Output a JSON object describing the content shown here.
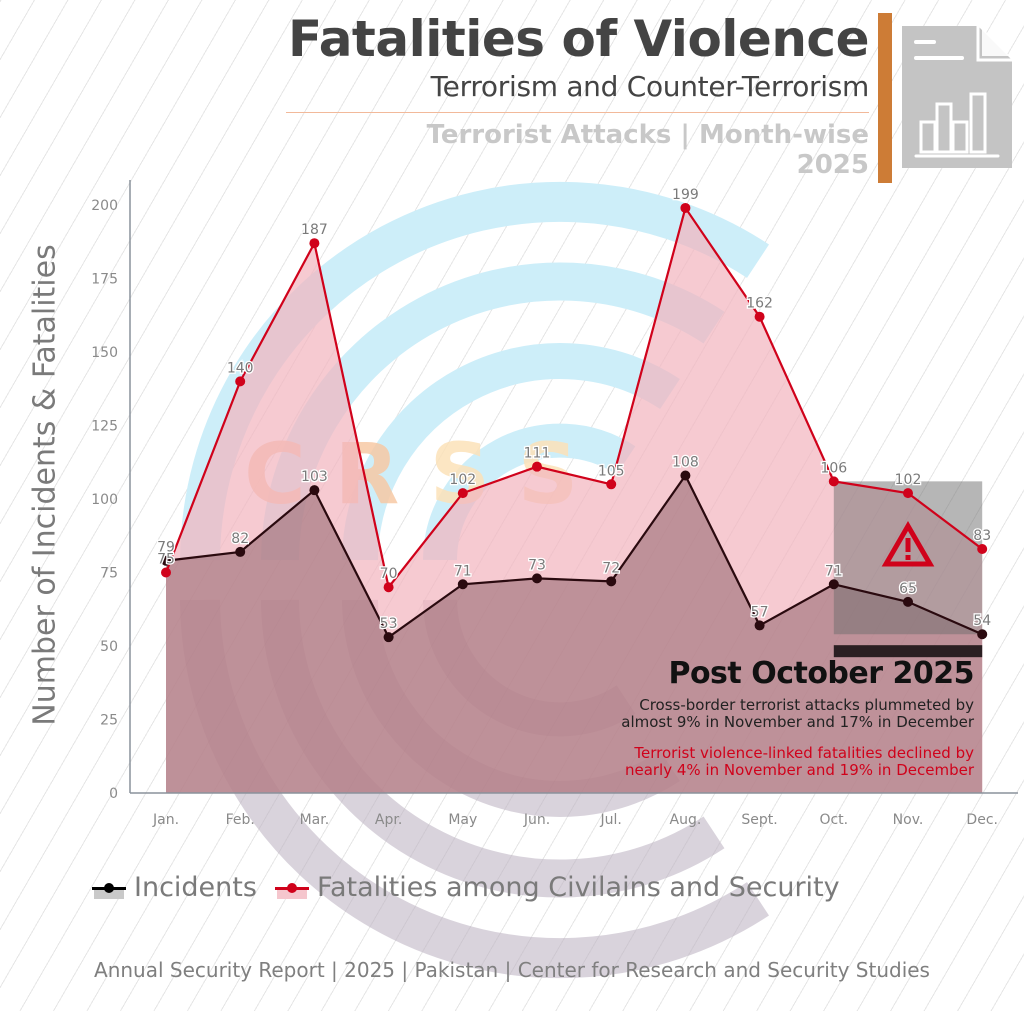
{
  "header": {
    "title": "Fatalities of Violence",
    "subtitle": "Terrorism and Counter-Terrorism",
    "section": "Terrorist Attacks | Month-wise",
    "year": "2025",
    "icon": "document-bar-chart-icon",
    "accent_color": "#cd7c36"
  },
  "watermark": {
    "letters": [
      "C",
      "R",
      "S",
      "S"
    ]
  },
  "annotation": {
    "icon": "warning-triangle-icon",
    "heading": "Post October 2025",
    "incidents_note_line1": "Cross-border terrorist attacks plummeted by",
    "incidents_note_line2": "almost 9% in November and 17% in December",
    "fatalities_note_line1": "Terrorist violence-linked fatalities declined by",
    "fatalities_note_line2": "nearly 4% in November and 19% in December",
    "highlight_range": [
      "Oct.",
      "Dec."
    ]
  },
  "legend": {
    "items": [
      {
        "label": "Incidents",
        "color": "#000000",
        "fill": "#c9c9c9"
      },
      {
        "label": "Fatalities among Civilains and Security",
        "color": "#d0021b",
        "fill": "#f5c6cd"
      }
    ]
  },
  "footer": "Annual Security Report | 2025 | Pakistan | Center for Research and Security Studies",
  "chart_data": {
    "type": "area",
    "title": "Fatalities of Violence",
    "subtitle": "Terrorism and Counter-Terrorism — Terrorist Attacks | Month-wise 2025",
    "xlabel": "",
    "ylabel": "Number of Incidents & Fatalities",
    "categories": [
      "Jan.",
      "Feb.",
      "Mar.",
      "Apr.",
      "May",
      "Jun.",
      "Jul.",
      "Aug.",
      "Sept.",
      "Oct.",
      "Nov.",
      "Dec."
    ],
    "yticks": [
      0,
      25,
      50,
      75,
      100,
      125,
      150,
      175,
      200
    ],
    "ylim": [
      0,
      200
    ],
    "grid": false,
    "legend_position": "bottom",
    "series": [
      {
        "name": "Fatalities among Civilains and Security",
        "color": "#d0021b",
        "fill": "#f2b3bd",
        "values": [
          75,
          140,
          187,
          70,
          102,
          111,
          105,
          199,
          162,
          106,
          102,
          83
        ]
      },
      {
        "name": "Incidents",
        "color": "#2a0a0f",
        "fill": "#9a6a73",
        "values": [
          79,
          82,
          103,
          53,
          71,
          73,
          72,
          108,
          57,
          71,
          65,
          54
        ]
      }
    ]
  }
}
